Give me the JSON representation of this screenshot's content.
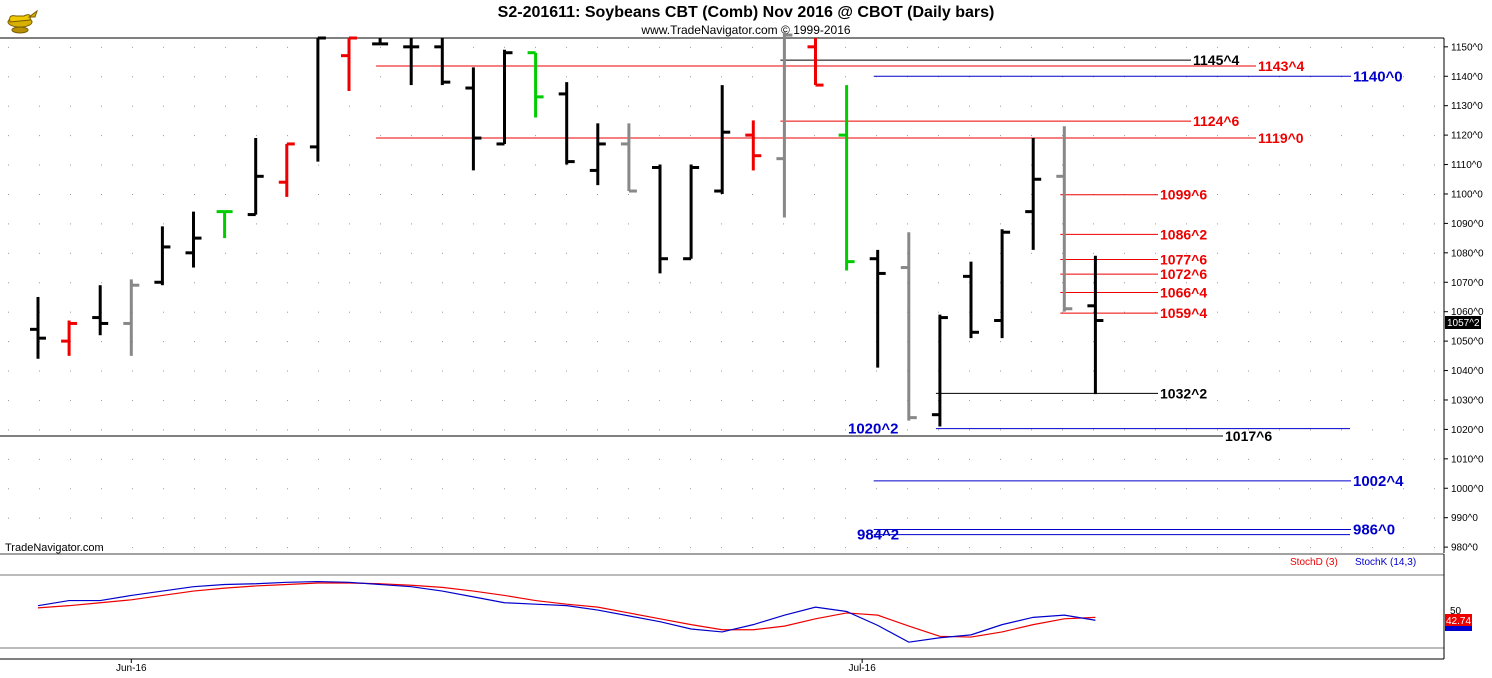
{
  "header": {
    "title": "S2-201611:  Soybeans CBT (Comb) Nov 2016 @ CBOT  (Daily bars)",
    "subtitle": "www.TradeNavigator.com © 1999-2016"
  },
  "watermark": "TradeNavigator.com",
  "logo_icon": "genie-lamp-icon",
  "colors": {
    "up": "#000000",
    "down": "#ee0000",
    "neutral": "#888888",
    "signal": "#00cc00",
    "blue_level": "#0000cc",
    "red_level": "#ee0000",
    "black_level": "#000000",
    "stochK": "#0000cc",
    "stochD": "#ee0000"
  },
  "chart_data": [
    {
      "type": "ohlc",
      "title": "S2-201611:  Soybeans CBT (Comb) Nov 2016 @ CBOT  (Daily bars)",
      "y_ticks": [
        "1150^0",
        "1140^0",
        "1130^0",
        "1120^0",
        "1110^0",
        "1100^0",
        "1090^0",
        "1080^0",
        "1070^0",
        "1060^0",
        "1050^0",
        "1040^0",
        "1030^0",
        "1020^0",
        "1010^0",
        "1000^0",
        "990^0",
        "980^0"
      ],
      "ylim": [
        978,
        1153
      ],
      "x_labels": [
        {
          "label": "Jun-16",
          "bar": 3
        },
        {
          "label": "Jul-16",
          "bar": 26.5
        }
      ],
      "last_price": "1057^2",
      "bars": [
        {
          "o": 1054,
          "h": 1065,
          "l": 1044,
          "c": 1051,
          "color": "up"
        },
        {
          "o": 1050,
          "h": 1057,
          "l": 1045,
          "c": 1056,
          "color": "down"
        },
        {
          "o": 1058,
          "h": 1069,
          "l": 1052,
          "c": 1056,
          "color": "up"
        },
        {
          "o": 1056,
          "h": 1071,
          "l": 1045,
          "c": 1069,
          "color": "neutral"
        },
        {
          "o": 1070,
          "h": 1089,
          "l": 1069,
          "c": 1082,
          "color": "up"
        },
        {
          "o": 1080,
          "h": 1094,
          "l": 1075,
          "c": 1085,
          "color": "up"
        },
        {
          "o": 1094,
          "h": 1094,
          "l": 1085,
          "c": 1094,
          "color": "signal"
        },
        {
          "o": 1093,
          "h": 1119,
          "l": 1093,
          "c": 1106,
          "color": "up"
        },
        {
          "o": 1104,
          "h": 1117,
          "l": 1099,
          "c": 1117,
          "color": "down"
        },
        {
          "o": 1116,
          "h": 1153,
          "l": 1111,
          "c": 1153,
          "color": "up"
        },
        {
          "o": 1147,
          "h": 1153,
          "l": 1135,
          "c": 1153,
          "color": "down"
        },
        {
          "o": 1151,
          "h": 1153,
          "l": 1151,
          "c": 1151,
          "color": "up"
        },
        {
          "o": 1150,
          "h": 1153,
          "l": 1137,
          "c": 1150,
          "color": "up"
        },
        {
          "o": 1150,
          "h": 1153,
          "l": 1137,
          "c": 1138,
          "color": "up"
        },
        {
          "o": 1136,
          "h": 1143,
          "l": 1108,
          "c": 1119,
          "color": "up"
        },
        {
          "o": 1117,
          "h": 1149,
          "l": 1117,
          "c": 1148,
          "color": "up"
        },
        {
          "o": 1148,
          "h": 1148,
          "l": 1126,
          "c": 1133,
          "color": "signal"
        },
        {
          "o": 1134,
          "h": 1138,
          "l": 1110,
          "c": 1111,
          "color": "up"
        },
        {
          "o": 1108,
          "h": 1124,
          "l": 1103,
          "c": 1117,
          "color": "up"
        },
        {
          "o": 1117,
          "h": 1124,
          "l": 1101,
          "c": 1101,
          "color": "neutral"
        },
        {
          "o": 1109,
          "h": 1110,
          "l": 1073,
          "c": 1078,
          "color": "up"
        },
        {
          "o": 1078,
          "h": 1110,
          "l": 1078,
          "c": 1109,
          "color": "up"
        },
        {
          "o": 1101,
          "h": 1137,
          "l": 1100,
          "c": 1121,
          "color": "up"
        },
        {
          "o": 1120,
          "h": 1125,
          "l": 1108,
          "c": 1113,
          "color": "down"
        },
        {
          "o": 1112,
          "h": 1155,
          "l": 1092,
          "c": 1154,
          "color": "neutral"
        },
        {
          "o": 1150,
          "h": 1153,
          "l": 1137,
          "c": 1137,
          "color": "down"
        },
        {
          "o": 1120,
          "h": 1137,
          "l": 1074,
          "c": 1077,
          "color": "signal"
        },
        {
          "o": 1078,
          "h": 1081,
          "l": 1041,
          "c": 1073,
          "color": "up"
        },
        {
          "o": 1075,
          "h": 1087,
          "l": 1023,
          "c": 1024,
          "color": "neutral"
        },
        {
          "o": 1025,
          "h": 1059,
          "l": 1021,
          "c": 1058,
          "color": "up"
        },
        {
          "o": 1072,
          "h": 1077,
          "l": 1051,
          "c": 1053,
          "color": "up"
        },
        {
          "o": 1057,
          "h": 1088,
          "l": 1051,
          "c": 1087,
          "color": "up"
        },
        {
          "o": 1094,
          "h": 1119,
          "l": 1081,
          "c": 1105,
          "color": "up"
        },
        {
          "o": 1106,
          "h": 1123,
          "l": 1060,
          "c": 1061,
          "color": "neutral"
        },
        {
          "o": 1062,
          "h": 1079,
          "l": 1032,
          "c": 1057,
          "color": "up"
        }
      ],
      "levels": [
        {
          "label": "1145^4",
          "value": 1145.5,
          "from_bar": 24,
          "label_at": 1193,
          "color": "black_level"
        },
        {
          "label": "1143^4",
          "value": 1143.5,
          "from_bar": 11,
          "label_at": 1258,
          "color": "red_level"
        },
        {
          "label": "1140^0",
          "value": 1140.0,
          "from_bar": 27,
          "label_at": 1353,
          "color": "blue_level",
          "big": true
        },
        {
          "label": "1124^6",
          "value": 1124.75,
          "from_bar": 24,
          "label_at": 1193,
          "color": "red_level"
        },
        {
          "label": "1119^0",
          "value": 1119.0,
          "from_bar": 11,
          "label_at": 1258,
          "color": "red_level"
        },
        {
          "label": "1099^6",
          "value": 1099.75,
          "from_bar": 33,
          "label_at": 1160,
          "color": "red_level"
        },
        {
          "label": "1086^2",
          "value": 1086.25,
          "from_bar": 33,
          "label_at": 1160,
          "color": "red_level"
        },
        {
          "label": "1077^6",
          "value": 1077.75,
          "from_bar": 33,
          "label_at": 1160,
          "color": "red_level"
        },
        {
          "label": "1072^6",
          "value": 1072.75,
          "from_bar": 33,
          "label_at": 1160,
          "color": "red_level"
        },
        {
          "label": "1066^4",
          "value": 1066.5,
          "from_bar": 33,
          "label_at": 1160,
          "color": "red_level"
        },
        {
          "label": "1059^4",
          "value": 1059.5,
          "from_bar": 33,
          "label_at": 1160,
          "color": "red_level"
        },
        {
          "label": "1032^2",
          "value": 1032.25,
          "from_bar": 29,
          "label_at": 1160,
          "color": "black_level"
        },
        {
          "label": "1020^2",
          "value": 1020.25,
          "from_bar": 29,
          "label_at": 848,
          "color": "blue_level",
          "big": true,
          "label_left": true
        },
        {
          "label": "1017^6",
          "value": 1017.75,
          "from_bar": -1,
          "label_at": 1225,
          "color": "black_level"
        },
        {
          "label": "1002^4",
          "value": 1002.5,
          "from_bar": 27,
          "label_at": 1353,
          "color": "blue_level",
          "big": true
        },
        {
          "label": "986^0",
          "value": 986.0,
          "from_bar": 27,
          "label_at": 1353,
          "color": "blue_level",
          "big": true
        },
        {
          "label": "984^2",
          "value": 984.25,
          "from_bar": 27,
          "label_at": 857,
          "color": "blue_level",
          "big": true,
          "label_left": true
        }
      ]
    },
    {
      "type": "line",
      "legend": [
        "StochD (3)",
        "StochK (14,3)"
      ],
      "y_ticks": [
        "50"
      ],
      "ylim": [
        0,
        100
      ],
      "last_value": "42.74",
      "series": [
        {
          "name": "StochK (14,3)",
          "color": "stochK",
          "x": [
            0,
            1,
            2,
            3,
            4,
            5,
            6,
            7,
            8,
            9,
            10,
            11,
            12,
            13,
            14,
            15,
            16,
            17,
            18,
            19,
            20,
            21,
            22,
            23,
            24,
            25,
            26,
            27,
            28,
            29,
            30,
            31,
            32,
            33,
            34
          ],
          "values": [
            58,
            65,
            65,
            72,
            78,
            84,
            87,
            88,
            90,
            91,
            90,
            87,
            84,
            78,
            70,
            62,
            60,
            58,
            52,
            44,
            36,
            26,
            22,
            32,
            45,
            56,
            50,
            31,
            8,
            14,
            18,
            32,
            42,
            45,
            38
          ]
        },
        {
          "name": "StochD (3)",
          "color": "stochD",
          "x": [
            0,
            1,
            2,
            3,
            4,
            5,
            6,
            7,
            8,
            9,
            10,
            11,
            12,
            13,
            14,
            15,
            16,
            17,
            18,
            19,
            20,
            21,
            22,
            23,
            24,
            25,
            26,
            27,
            28,
            29,
            30,
            31,
            32,
            33,
            34
          ],
          "values": [
            55,
            58,
            62,
            66,
            72,
            78,
            82,
            85,
            87,
            89,
            89,
            88,
            86,
            83,
            78,
            72,
            65,
            60,
            56,
            48,
            40,
            32,
            25,
            25,
            30,
            40,
            48,
            45,
            30,
            16,
            15,
            22,
            32,
            40,
            42
          ]
        }
      ]
    }
  ]
}
